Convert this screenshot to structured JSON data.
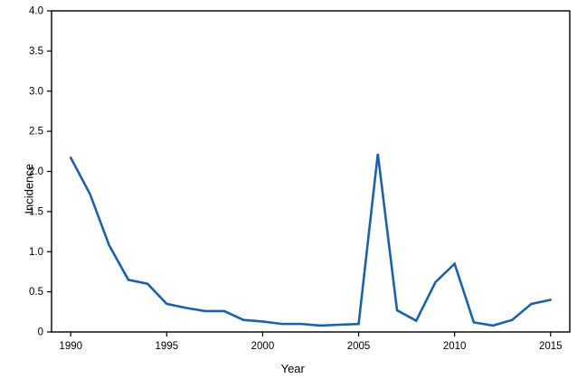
{
  "chart_data": {
    "type": "line",
    "title": "",
    "xlabel": "Year",
    "ylabel": "Incidence",
    "x": [
      1990,
      1991,
      1992,
      1993,
      1994,
      1995,
      1996,
      1997,
      1998,
      1999,
      2000,
      2001,
      2002,
      2003,
      2004,
      2005,
      2006,
      2007,
      2008,
      2009,
      2010,
      2011,
      2012,
      2013,
      2014,
      2015
    ],
    "series": [
      {
        "name": "Incidence",
        "values": [
          2.17,
          1.72,
          1.08,
          0.65,
          0.6,
          0.35,
          0.3,
          0.26,
          0.26,
          0.15,
          0.13,
          0.1,
          0.1,
          0.08,
          0.09,
          0.1,
          2.22,
          0.27,
          0.14,
          0.62,
          0.85,
          0.12,
          0.08,
          0.15,
          0.35,
          0.4
        ],
        "color": "#1c62a8"
      }
    ],
    "xlim": [
      1989,
      2016
    ],
    "ylim": [
      0,
      4.0
    ],
    "xticks": {
      "values": [
        1990,
        1995,
        2000,
        2005,
        2010,
        2015
      ],
      "labels": [
        "1990",
        "1995",
        "2000",
        "2005",
        "2010",
        "2015"
      ]
    },
    "yticks": {
      "values": [
        0,
        0.5,
        1.0,
        1.5,
        2.0,
        2.5,
        3.0,
        3.5,
        4.0
      ],
      "labels": [
        "0",
        "0.5",
        "1.0",
        "1.5",
        "2.0",
        "2.5",
        "3.0",
        "3.5",
        "4.0"
      ]
    },
    "grid": false,
    "legend_position": "none",
    "frame_color": "#000000",
    "tick_label_color": "#000000",
    "line_width": 2.6
  }
}
